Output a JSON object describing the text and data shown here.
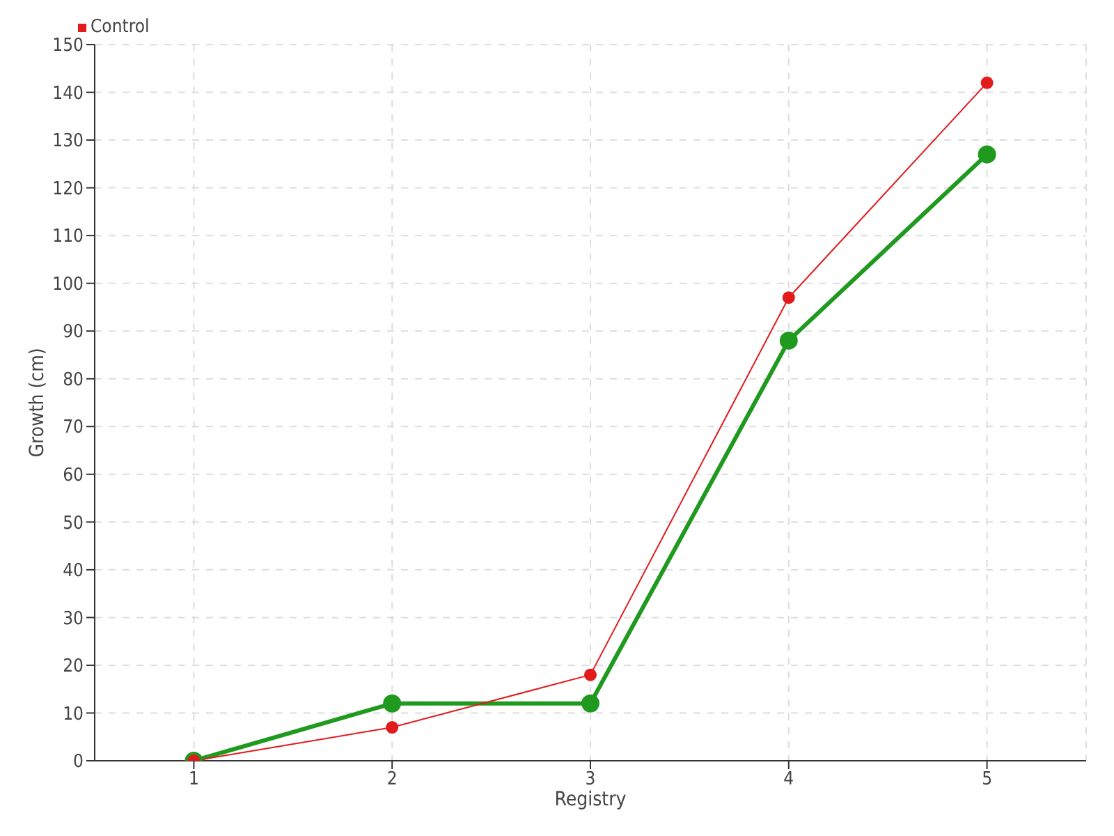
{
  "chart_data": {
    "type": "line",
    "x": [
      1,
      2,
      3,
      4,
      5
    ],
    "xlabel": "Registry",
    "ylabel": "Growth (cm)",
    "series": [
      {
        "color": "#1f9a1f",
        "values": [
          0,
          12,
          12,
          88,
          127
        ]
      },
      {
        "name": "Control",
        "color": "#e31a1c",
        "values": [
          0,
          7,
          18,
          97,
          142
        ]
      }
    ],
    "xlim": [
      0.5,
      5.5
    ],
    "xticks": [
      1,
      2,
      3,
      4,
      5
    ],
    "ylim": [
      0,
      150
    ],
    "yticks": [
      0,
      10,
      20,
      30,
      40,
      50,
      60,
      70,
      80,
      90,
      100,
      110,
      120,
      130,
      140,
      150
    ],
    "grid": true,
    "legend": "top left",
    "marker": "circle",
    "line_style": "solid"
  }
}
